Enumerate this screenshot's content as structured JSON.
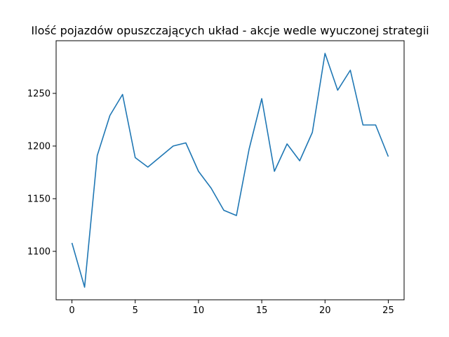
{
  "chart_data": {
    "type": "line",
    "title": "Ilość pojazdów opuszczających układ - akcje wedle wyuczonej strategii",
    "xlabel": "",
    "ylabel": "",
    "x": [
      0,
      1,
      2,
      3,
      4,
      5,
      6,
      7,
      8,
      9,
      10,
      11,
      12,
      13,
      14,
      15,
      16,
      17,
      18,
      19,
      20,
      21,
      22,
      23,
      24,
      25
    ],
    "series": [
      {
        "values": [
          1108,
          1066,
          1191,
          1229,
          1249,
          1189,
          1180,
          1190,
          1200,
          1203,
          1176,
          1160,
          1139,
          1134,
          1197,
          1245,
          1176,
          1202,
          1186,
          1213,
          1288,
          1253,
          1272,
          1220,
          1220,
          1190
        ]
      }
    ],
    "xlim": [
      -1.25,
      26.25
    ],
    "ylim": [
      1054,
      1300
    ],
    "xticks": [
      0,
      5,
      10,
      15,
      20,
      25
    ],
    "yticks": [
      1100,
      1150,
      1200,
      1250
    ],
    "grid": false,
    "line_color": "#1f77b4"
  }
}
